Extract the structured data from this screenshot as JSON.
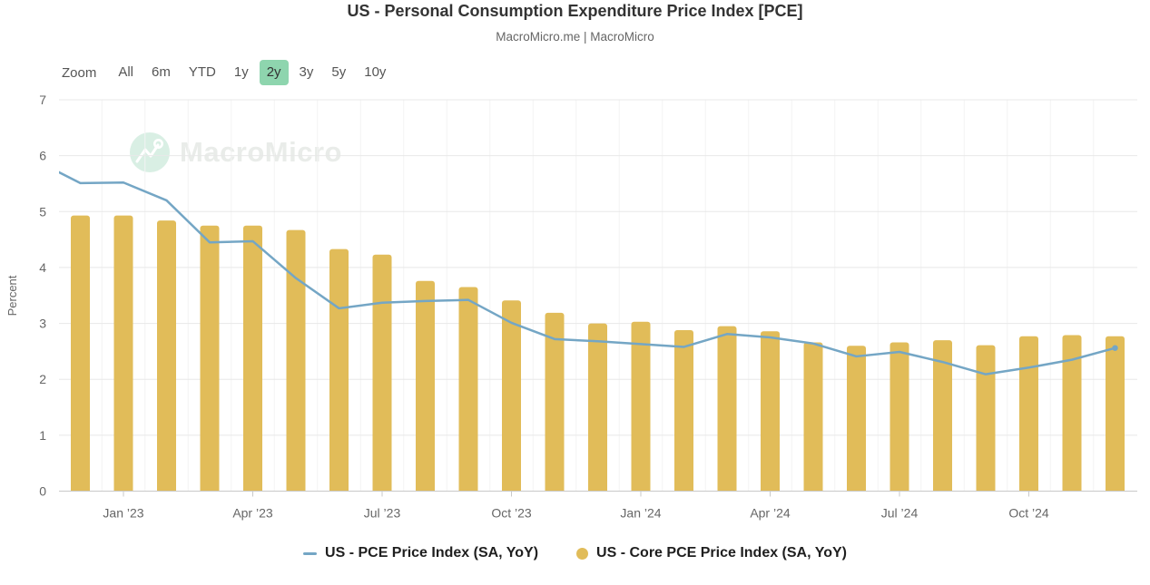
{
  "header": {
    "title": "US - Personal Consumption Expenditure Price Index [PCE]",
    "subtitle": "MacroMicro.me | MacroMicro"
  },
  "range_selector": {
    "label": "Zoom",
    "buttons": [
      {
        "label": "All",
        "selected": false
      },
      {
        "label": "6m",
        "selected": false
      },
      {
        "label": "YTD",
        "selected": false
      },
      {
        "label": "1y",
        "selected": false
      },
      {
        "label": "2y",
        "selected": true
      },
      {
        "label": "3y",
        "selected": false
      },
      {
        "label": "5y",
        "selected": false
      },
      {
        "label": "10y",
        "selected": false
      }
    ],
    "selected_color": "#8ed5ae"
  },
  "watermark": {
    "text": "MacroMicro"
  },
  "chart_data": {
    "type": "combo",
    "categories": [
      "Nov ’22",
      "Dec ’22",
      "Jan ’23",
      "Feb ’23",
      "Mar ’23",
      "Apr ’23",
      "May ’23",
      "Jun ’23",
      "Jul ’23",
      "Aug ’23",
      "Sep ’23",
      "Oct ’23",
      "Nov ’23",
      "Dec ’23",
      "Jan ’24",
      "Feb ’24",
      "Mar ’24",
      "Apr ’24",
      "May ’24",
      "Jun ’24",
      "Jul ’24",
      "Aug ’24",
      "Sep ’24",
      "Oct ’24",
      "Nov ’24",
      "Dec ’24"
    ],
    "series": [
      {
        "name": "US - PCE Price Index (SA, YoY)",
        "type": "line",
        "color": "#74a6c5",
        "values": [
          5.9,
          5.51,
          5.52,
          5.2,
          4.45,
          4.47,
          3.81,
          3.27,
          3.37,
          3.4,
          3.42,
          3.01,
          2.72,
          2.68,
          2.63,
          2.58,
          2.81,
          2.75,
          2.64,
          2.41,
          2.49,
          2.31,
          2.09,
          2.21,
          2.35,
          2.56
        ]
      },
      {
        "name": "US - Core PCE Price Index (SA, YoY)",
        "type": "bar",
        "color": "#e1bc59",
        "values": [
          null,
          4.93,
          4.93,
          4.84,
          4.75,
          4.75,
          4.67,
          4.33,
          4.23,
          3.76,
          3.65,
          3.41,
          3.19,
          3.0,
          3.03,
          2.88,
          2.95,
          2.86,
          2.66,
          2.6,
          2.66,
          2.7,
          2.61,
          2.77,
          2.79,
          2.77
        ]
      }
    ],
    "title": "US - Personal Consumption Expenditure Price Index [PCE]",
    "xlabel": "",
    "ylabel": "Percent",
    "ylim": [
      0,
      7
    ],
    "yticks": [
      0,
      1,
      2,
      3,
      4,
      5,
      6,
      7
    ],
    "xticks": [
      {
        "index": 2,
        "label": "Jan ’23"
      },
      {
        "index": 5,
        "label": "Apr ’23"
      },
      {
        "index": 8,
        "label": "Jul ’23"
      },
      {
        "index": 11,
        "label": "Oct ’23"
      },
      {
        "index": 14,
        "label": "Jan ’24"
      },
      {
        "index": 17,
        "label": "Apr ’24"
      },
      {
        "index": 20,
        "label": "Jul ’24"
      },
      {
        "index": 23,
        "label": "Oct ’24"
      }
    ],
    "grid": true,
    "legend_position": "bottom",
    "note_first_line_point_clipped_at_left_edge": true
  }
}
